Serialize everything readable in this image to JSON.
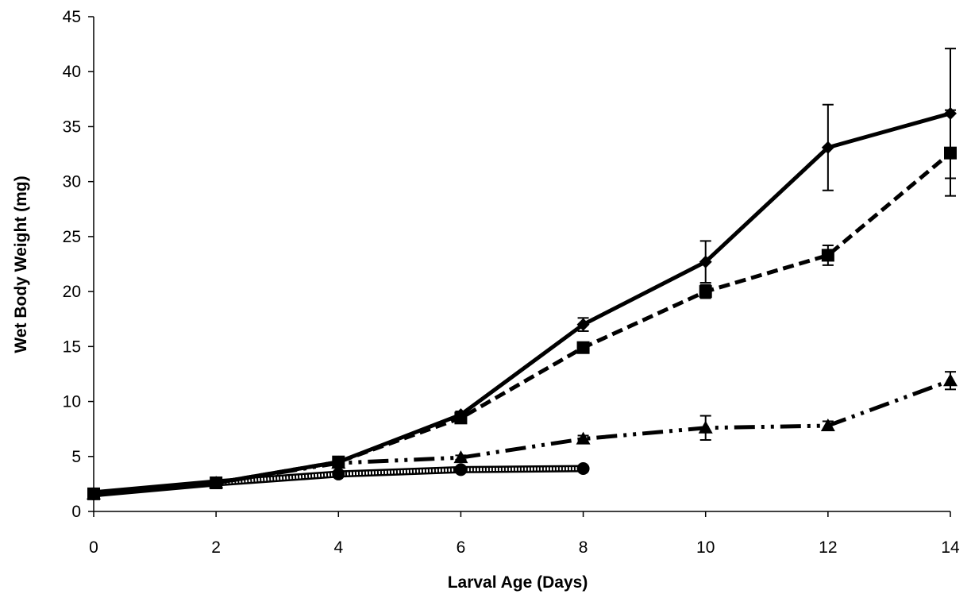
{
  "chart_data": {
    "type": "line",
    "title": "",
    "xlabel": "Larval Age (Days)",
    "ylabel": "Wet Body Weight (mg)",
    "xlim": [
      0,
      14
    ],
    "ylim": [
      0,
      45
    ],
    "xticks": [
      0,
      2,
      4,
      6,
      8,
      10,
      12,
      14
    ],
    "yticks": [
      0,
      5,
      10,
      15,
      20,
      25,
      30,
      35,
      40,
      45
    ],
    "grid": false,
    "legend": "none",
    "series": [
      {
        "marker": "diamond",
        "line_style": "solid",
        "color": "#000000",
        "x": [
          0,
          2,
          4,
          6,
          8,
          10,
          12,
          14
        ],
        "y": [
          1.6,
          2.6,
          4.5,
          8.8,
          17.0,
          22.7,
          33.1,
          36.2
        ],
        "error": [
          0,
          0,
          0,
          0.3,
          0.6,
          1.9,
          3.9,
          5.9
        ]
      },
      {
        "marker": "square",
        "line_style": "dashed",
        "color": "#000000",
        "x": [
          0,
          2,
          4,
          6,
          8,
          10,
          12,
          14
        ],
        "y": [
          1.6,
          2.6,
          4.5,
          8.5,
          14.9,
          20.0,
          23.3,
          32.6
        ],
        "error": [
          0,
          0,
          0,
          0.3,
          0.4,
          0.6,
          0.9,
          3.9
        ]
      },
      {
        "marker": "triangle",
        "line_style": "dash-dot",
        "color": "#000000",
        "x": [
          0,
          2,
          4,
          6,
          8,
          10,
          12,
          14
        ],
        "y": [
          1.6,
          2.6,
          4.4,
          4.9,
          6.6,
          7.6,
          7.8,
          11.9
        ],
        "error": [
          0,
          0,
          0,
          0.2,
          0.3,
          1.1,
          0.4,
          0.8
        ]
      },
      {
        "marker": "circle",
        "line_style": "dotted",
        "color": "#000000",
        "x": [
          0,
          2,
          4,
          6,
          8
        ],
        "y": [
          1.6,
          2.6,
          3.4,
          3.8,
          3.9
        ],
        "error": [
          0,
          0,
          0,
          0,
          0
        ]
      }
    ]
  }
}
